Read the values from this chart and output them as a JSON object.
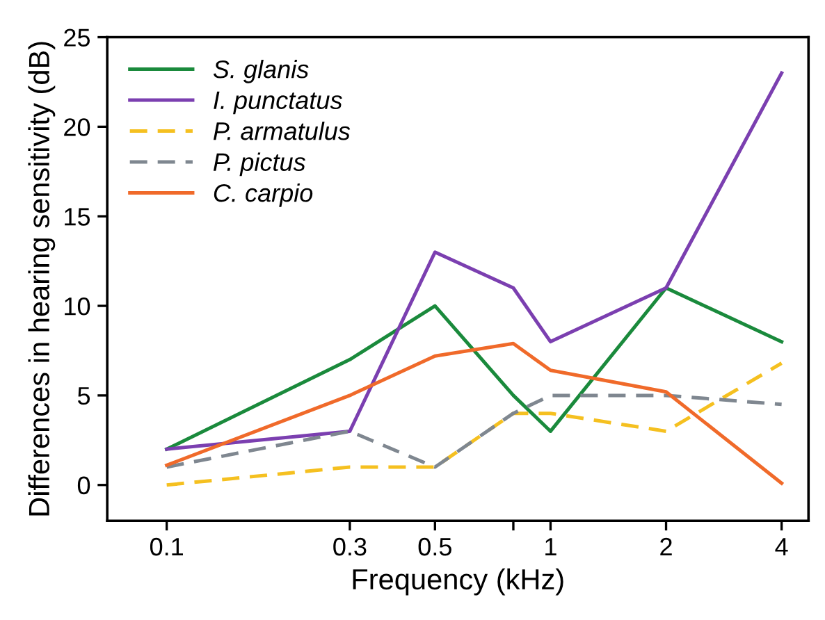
{
  "chart_data": {
    "type": "line",
    "xlabel": "Frequency (kHz)",
    "ylabel": "Differences in hearing sensitivity (dB)",
    "x": [
      0.1,
      0.3,
      0.5,
      0.8,
      1,
      2,
      4
    ],
    "log": "x",
    "xlim": [
      0.07,
      4.7
    ],
    "xticks": [
      0.1,
      0.3,
      0.5,
      {
        "value": 0.8,
        "label": null
      },
      1,
      2,
      4
    ],
    "ylim": [
      -2,
      25
    ],
    "yticks": [
      0,
      5,
      10,
      15,
      20,
      25
    ],
    "grid": false,
    "legend": "top left",
    "series": [
      {
        "name": "S. glanis",
        "color": "#1a8a3c",
        "line_style": "solid",
        "values": [
          2,
          7,
          10,
          5,
          3,
          11,
          8
        ]
      },
      {
        "name": "I. punctatus",
        "color": "#7b3fb0",
        "line_style": "solid",
        "values": [
          2,
          3,
          13,
          11,
          8,
          11,
          23
        ]
      },
      {
        "name": "P. armatulus",
        "color": "#f5c020",
        "line_style": "dashed",
        "values": [
          0,
          1,
          1,
          4,
          4,
          3,
          6.8
        ]
      },
      {
        "name": "P. pictus",
        "color": "#7f8790",
        "line_style": "dashed",
        "values": [
          1,
          3,
          1,
          4,
          5,
          5,
          4.5
        ]
      },
      {
        "name": "C. carpio",
        "color": "#f06a2a",
        "line_style": "solid",
        "values": [
          1.1,
          5,
          7.2,
          7.9,
          6.4,
          5.2,
          0.1
        ]
      }
    ]
  }
}
